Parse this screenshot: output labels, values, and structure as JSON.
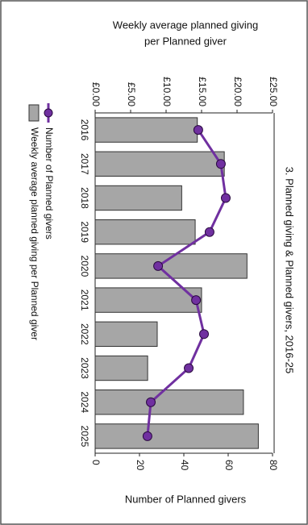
{
  "chart_data": {
    "type": "combo",
    "title": "3. Planned giving & Planned givers, 2016-25",
    "y_label": [
      "Weekly average planned giving",
      "per Planned giver"
    ],
    "y2_label": "Number of Planned givers",
    "categories": [
      "2016",
      "2017",
      "2018",
      "2019",
      "2020",
      "2021",
      "2022",
      "2023",
      "2024",
      "2025"
    ],
    "series": [
      {
        "name": "Number of Planned givers",
        "type": "line",
        "axis": "y2",
        "color": "#7030a0",
        "values": [
          46.5,
          56.7,
          58.9,
          51.6,
          28.4,
          45.5,
          49.1,
          42.2,
          25.1,
          23.6
        ]
      },
      {
        "name": "Weekly average planned giving per Planned giver",
        "type": "bar",
        "color": "#a6a6a6",
        "values": [
          14.4,
          18.2,
          12.2,
          14.1,
          21.4,
          15.0,
          8.75,
          7.4,
          20.9,
          23.0
        ]
      }
    ],
    "ylim": [
      0,
      25
    ],
    "yticks": [
      {
        "value": 0,
        "label": "£0.00"
      },
      {
        "value": 5,
        "label": "£5.00"
      },
      {
        "value": 10,
        "label": "£10.00"
      },
      {
        "value": 15,
        "label": "£15.00"
      },
      {
        "value": 20,
        "label": "£20.00"
      },
      {
        "value": 25,
        "label": "£25.00"
      }
    ],
    "y2lim": [
      0,
      80
    ],
    "y2ticks": [
      0,
      20,
      40,
      60,
      80
    ]
  }
}
